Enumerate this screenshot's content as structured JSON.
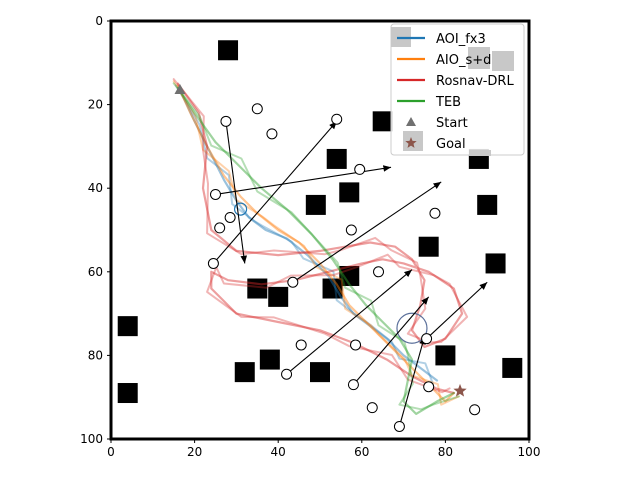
{
  "chart_data": {
    "type": "scatter",
    "title": "",
    "xlabel": "",
    "ylabel": "",
    "xlim": [
      0,
      100
    ],
    "ylim": [
      100,
      0
    ],
    "y_inverted": true,
    "grid": false,
    "legend_position": "top-right",
    "x_ticks": [
      "0",
      "20",
      "40",
      "60",
      "80",
      "100"
    ],
    "y_ticks": [
      "0",
      "20",
      "40",
      "60",
      "80",
      "100"
    ],
    "colors": {
      "AOI_fx3": "#1f77b4",
      "AIO_s+d": "#ff7f0e",
      "Rosnav-DRL": "#d62728",
      "TEB": "#2ca02c",
      "Start": "#707070",
      "Goal": "#8c564b",
      "obstacle": "#000000",
      "legend_gray": "#c8c8c8"
    },
    "start": {
      "label": "Start",
      "x": 16.5,
      "y": 16.5
    },
    "goal": {
      "label": "Goal",
      "x": 83.5,
      "y": 88.5
    },
    "static_obstacles": [
      {
        "x": 28,
        "y": 7
      },
      {
        "x": 65,
        "y": 24
      },
      {
        "x": 54,
        "y": 33
      },
      {
        "x": 57,
        "y": 41
      },
      {
        "x": 49,
        "y": 44
      },
      {
        "x": 76,
        "y": 54
      },
      {
        "x": 57,
        "y": 61
      },
      {
        "x": 35,
        "y": 64
      },
      {
        "x": 40,
        "y": 66
      },
      {
        "x": 53,
        "y": 64
      },
      {
        "x": 4,
        "y": 73
      },
      {
        "x": 38,
        "y": 81
      },
      {
        "x": 32,
        "y": 84
      },
      {
        "x": 50,
        "y": 84
      },
      {
        "x": 80,
        "y": 80
      },
      {
        "x": 4,
        "y": 89
      },
      {
        "x": 92,
        "y": 58
      },
      {
        "x": 90,
        "y": 44
      },
      {
        "x": 88,
        "y": 33
      },
      {
        "x": 96,
        "y": 83
      }
    ],
    "dynamic_obstacles": [
      {
        "x": 27.5,
        "y": 24,
        "dx": 32,
        "dy": 58
      },
      {
        "x": 24.5,
        "y": 58,
        "dx": 54,
        "dy": 24
      },
      {
        "x": 25,
        "y": 41.5,
        "dx": 67,
        "dy": 35
      },
      {
        "x": 43.5,
        "y": 62.5,
        "dx": 79,
        "dy": 38.5
      },
      {
        "x": 42,
        "y": 84.5,
        "dx": 72,
        "dy": 59.5
      },
      {
        "x": 58,
        "y": 87,
        "dx": 76,
        "dy": 66
      },
      {
        "x": 69,
        "y": 97,
        "dx": 75,
        "dy": 75.5
      },
      {
        "x": 75.5,
        "y": 76,
        "dx": 90,
        "dy": 62.5
      }
    ],
    "static_pedestrians": [
      {
        "x": 35,
        "y": 21
      },
      {
        "x": 38.5,
        "y": 27
      },
      {
        "x": 54,
        "y": 23.5
      },
      {
        "x": 59.5,
        "y": 35.5
      },
      {
        "x": 28.5,
        "y": 47
      },
      {
        "x": 26,
        "y": 49.5
      },
      {
        "x": 57.5,
        "y": 50
      },
      {
        "x": 77.5,
        "y": 46
      },
      {
        "x": 64,
        "y": 60
      },
      {
        "x": 45.5,
        "y": 77.5
      },
      {
        "x": 58.5,
        "y": 77.5
      },
      {
        "x": 76,
        "y": 87.5
      },
      {
        "x": 62.5,
        "y": 92.5
      },
      {
        "x": 87,
        "y": 93
      }
    ],
    "series": [
      {
        "name": "AOI_fx3",
        "color": "#1f77b4",
        "x": [
          16.5,
          20,
          24,
          27,
          30,
          33,
          37,
          42,
          47,
          52,
          55,
          58,
          62,
          66,
          70,
          74,
          78
        ],
        "y": [
          16.5,
          24,
          32,
          38,
          43,
          47,
          50,
          52,
          56,
          61,
          66,
          70,
          73,
          76,
          80,
          83,
          86
        ]
      },
      {
        "name": "AIO_s+d",
        "color": "#ff7f0e",
        "x": [
          16,
          19,
          23,
          27,
          31,
          35,
          40,
          45,
          50,
          54,
          57,
          61,
          65,
          69,
          73,
          77,
          80,
          82
        ],
        "y": [
          15.5,
          22,
          30,
          37,
          42,
          46,
          50,
          53,
          58,
          63,
          68,
          72,
          76,
          80,
          84,
          88,
          91,
          89
        ]
      },
      {
        "name": "Rosnav-DRL",
        "color": "#d62728",
        "x": [
          16,
          21,
          23,
          22,
          24,
          30,
          40,
          50,
          56,
          62,
          68,
          72,
          75,
          74,
          72,
          75,
          80,
          84,
          82,
          76,
          70,
          65,
          60,
          52,
          44,
          36,
          28,
          24,
          24,
          30,
          40,
          50,
          58,
          66,
          72,
          78,
          82
        ],
        "y": [
          15,
          22,
          30,
          40,
          50,
          55,
          56,
          55,
          54,
          53,
          54,
          57,
          62,
          68,
          74,
          78,
          76,
          70,
          64,
          60,
          58,
          57,
          58,
          60,
          62,
          63,
          62,
          60,
          64,
          70,
          72,
          74,
          77,
          81,
          85,
          88,
          89
        ]
      },
      {
        "name": "TEB",
        "color": "#2ca02c",
        "x": [
          16,
          20,
          25,
          30,
          36,
          42,
          48,
          53,
          57,
          61,
          65,
          69,
          72,
          71,
          70,
          73,
          78,
          82
        ],
        "y": [
          16,
          22,
          29,
          34,
          40,
          45,
          51,
          57,
          63,
          68,
          72,
          76,
          81,
          86,
          91,
          94,
          91,
          89
        ]
      }
    ],
    "legend": [
      {
        "label": "AOI_fx3",
        "marker": "line",
        "color": "#1f77b4"
      },
      {
        "label": "AIO_s+d",
        "marker": "line",
        "color": "#ff7f0e"
      },
      {
        "label": "Rosnav-DRL",
        "marker": "line",
        "color": "#d62728"
      },
      {
        "label": "TEB",
        "marker": "line",
        "color": "#2ca02c"
      },
      {
        "label": "Start",
        "marker": "triangle",
        "color": "#707070"
      },
      {
        "label": "Goal",
        "marker": "star",
        "color": "#8c564b"
      }
    ]
  }
}
